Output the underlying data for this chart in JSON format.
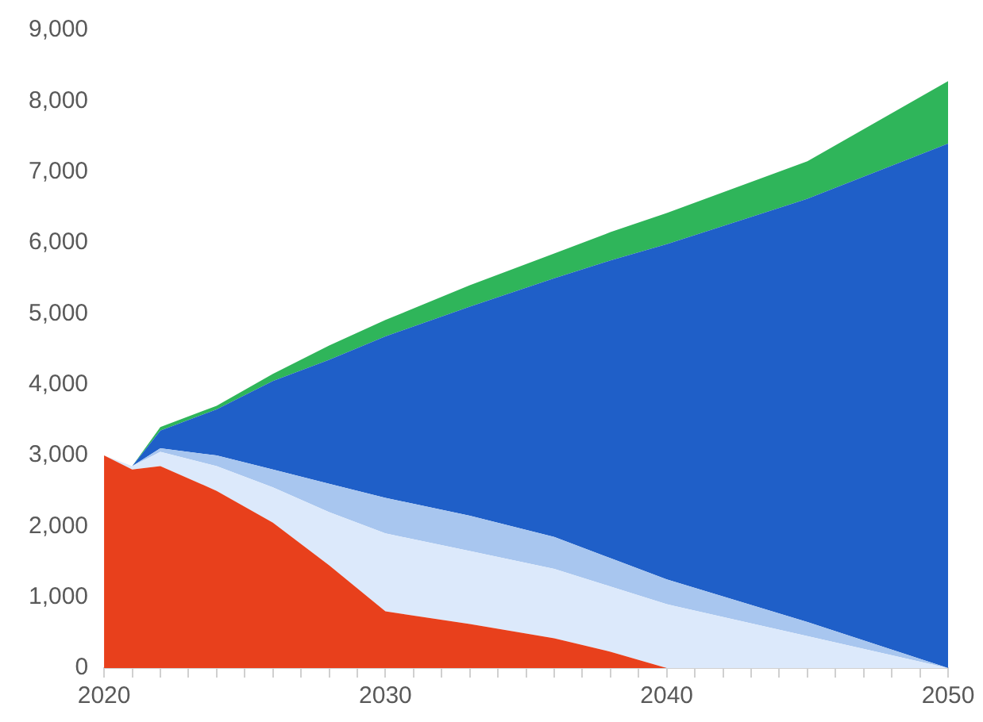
{
  "chart_data": {
    "type": "area",
    "stacked": true,
    "grid": false,
    "legend": false,
    "x": [
      2020,
      2021,
      2022,
      2024,
      2026,
      2028,
      2030,
      2033,
      2036,
      2038,
      2040,
      2045,
      2050
    ],
    "series": [
      {
        "color": "#e8401c",
        "values": [
          3000,
          2800,
          2850,
          2500,
          2050,
          1450,
          800,
          620,
          420,
          230,
          0,
          0,
          0
        ]
      },
      {
        "color": "#dce9fb",
        "values": [
          0,
          50,
          200,
          350,
          500,
          750,
          1100,
          1030,
          980,
          920,
          900,
          450,
          0
        ]
      },
      {
        "color": "#a8c6ef",
        "values": [
          0,
          0,
          50,
          150,
          250,
          400,
          500,
          500,
          450,
          400,
          350,
          200,
          0
        ]
      },
      {
        "color": "#1f5fc8",
        "values": [
          0,
          0,
          250,
          650,
          1250,
          1750,
          2280,
          2950,
          3650,
          4200,
          4730,
          5970,
          7400
        ]
      },
      {
        "color": "#2fb55a",
        "values": [
          0,
          0,
          50,
          50,
          100,
          200,
          230,
          300,
          350,
          400,
          440,
          530,
          880
        ]
      }
    ],
    "xlim": [
      2020,
      2050
    ],
    "xticks": [
      2020,
      {
        "value": 2021,
        "label": null
      },
      {
        "value": 2022,
        "label": null
      },
      {
        "value": 2023,
        "label": null
      },
      {
        "value": 2024,
        "label": null
      },
      {
        "value": 2025,
        "label": null
      },
      {
        "value": 2026,
        "label": null
      },
      {
        "value": 2027,
        "label": null
      },
      {
        "value": 2028,
        "label": null
      },
      {
        "value": 2029,
        "label": null
      },
      2030,
      {
        "value": 2031,
        "label": null
      },
      {
        "value": 2032,
        "label": null
      },
      {
        "value": 2033,
        "label": null
      },
      {
        "value": 2034,
        "label": null
      },
      {
        "value": 2035,
        "label": null
      },
      {
        "value": 2036,
        "label": null
      },
      {
        "value": 2037,
        "label": null
      },
      {
        "value": 2038,
        "label": null
      },
      {
        "value": 2039,
        "label": null
      },
      2040,
      {
        "value": 2041,
        "label": null
      },
      {
        "value": 2042,
        "label": null
      },
      {
        "value": 2043,
        "label": null
      },
      {
        "value": 2044,
        "label": null
      },
      {
        "value": 2045,
        "label": null
      },
      {
        "value": 2046,
        "label": null
      },
      {
        "value": 2047,
        "label": null
      },
      {
        "value": 2048,
        "label": null
      },
      {
        "value": 2049,
        "label": null
      },
      2050
    ],
    "ylim": [
      0,
      9000
    ],
    "yticks": [
      0,
      {
        "value": 1000,
        "label": "1,000"
      },
      {
        "value": 2000,
        "label": "2,000"
      },
      {
        "value": 3000,
        "label": "3,000"
      },
      {
        "value": 4000,
        "label": "4,000"
      },
      {
        "value": 5000,
        "label": "5,000"
      },
      {
        "value": 6000,
        "label": "6,000"
      },
      {
        "value": 7000,
        "label": "7,000"
      },
      {
        "value": 8000,
        "label": "8,000"
      },
      {
        "value": 9000,
        "label": "9,000"
      }
    ]
  }
}
